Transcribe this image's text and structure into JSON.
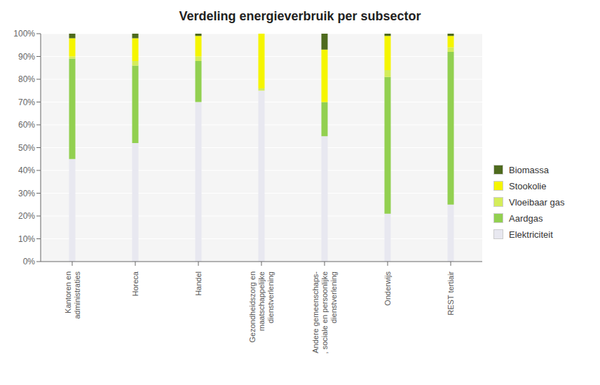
{
  "chart_data": {
    "type": "bar",
    "title": "Verdeling energieverbruik per subsector",
    "stacked": true,
    "grid": true,
    "legend": "right",
    "categories": [
      "Kantoren en\nadministraties",
      "Horeca",
      "Handel",
      "Gezondheidszorg en\nmaatschappelijke\ndienstverlening",
      "Andere gemeenschaps-\n, sociale en persoonlijke\ndienstverlening",
      "Onderwijs",
      "REST tertiair"
    ],
    "series": [
      {
        "name": "Elektriciteit",
        "color": "#e8e8f0",
        "values": [
          45,
          52,
          70,
          75,
          55,
          21,
          25
        ]
      },
      {
        "name": "Aardgas",
        "color": "#92d050",
        "values": [
          44,
          34,
          18,
          0,
          15,
          60,
          67
        ]
      },
      {
        "name": "Vloeibaar gas",
        "color": "#d4ed5a",
        "values": [
          1,
          2,
          2,
          1,
          0,
          3,
          2
        ]
      },
      {
        "name": "Stookolie",
        "color": "#f5f500",
        "values": [
          8,
          10,
          9,
          24,
          23,
          15,
          5
        ]
      },
      {
        "name": "Biomassa",
        "color": "#4e6b1e",
        "values": [
          2,
          2,
          1,
          0,
          7,
          1,
          1
        ]
      }
    ],
    "ylim": [
      0,
      100
    ],
    "yticks": [
      {
        "value": 0,
        "label": "0%"
      },
      {
        "value": 10,
        "label": "10%"
      },
      {
        "value": 20,
        "label": "20%"
      },
      {
        "value": 30,
        "label": "30%"
      },
      {
        "value": 40,
        "label": "40%"
      },
      {
        "value": 50,
        "label": "50%"
      },
      {
        "value": 60,
        "label": "60%"
      },
      {
        "value": 70,
        "label": "70%"
      },
      {
        "value": 80,
        "label": "80%"
      },
      {
        "value": 90,
        "label": "90%"
      },
      {
        "value": 100,
        "label": "100%"
      }
    ]
  }
}
